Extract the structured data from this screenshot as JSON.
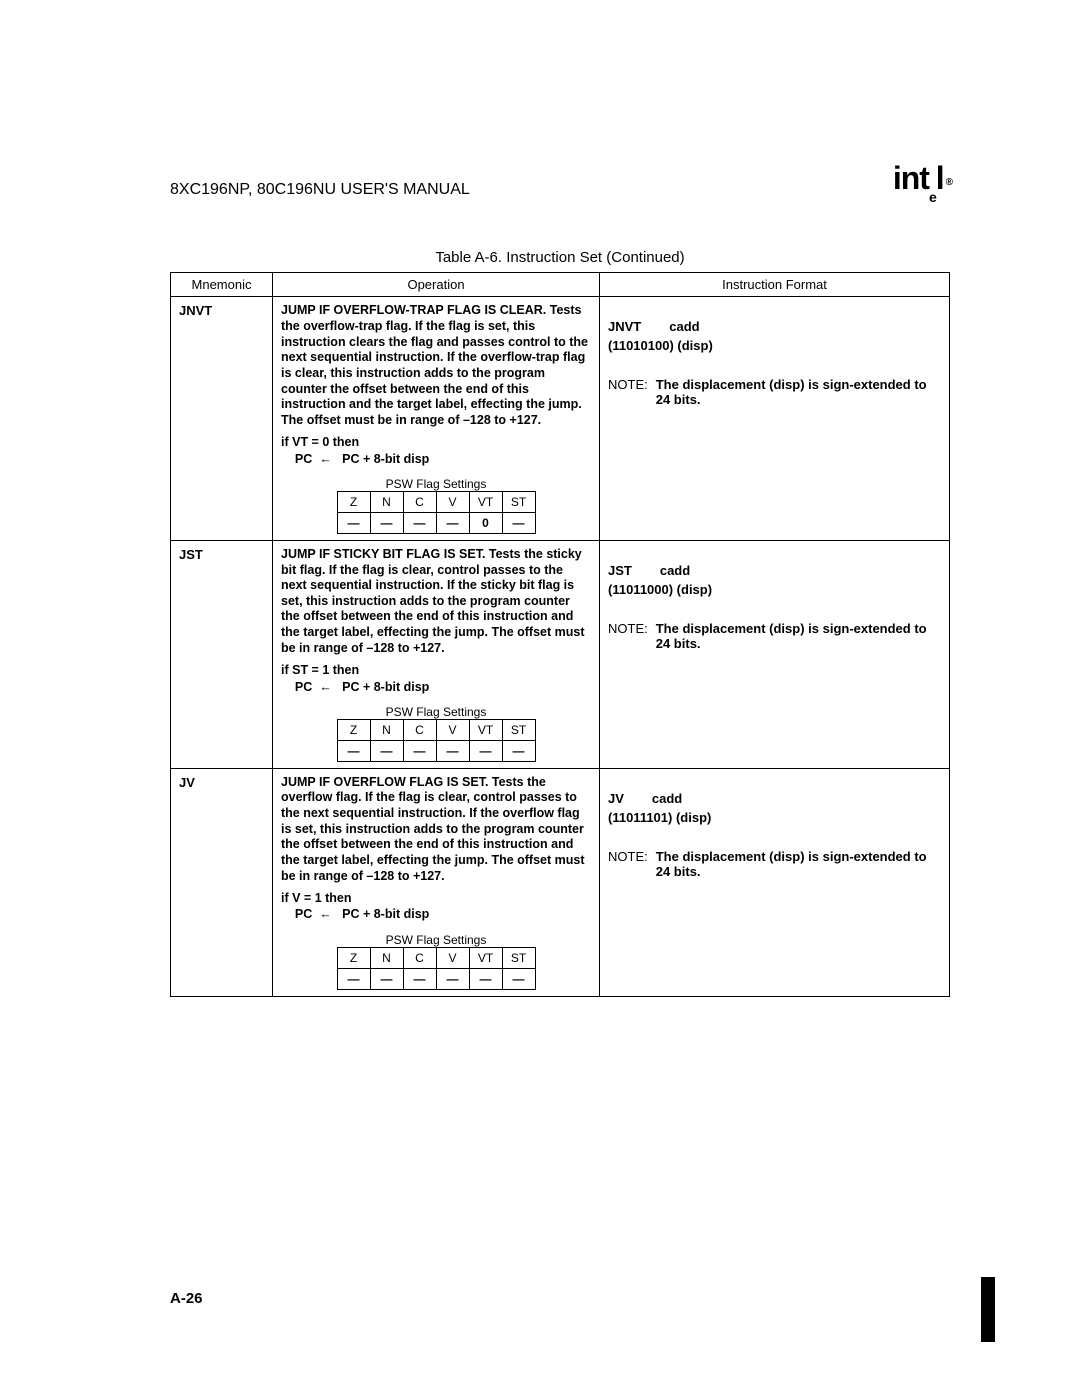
{
  "header": {
    "manual_title": "8XC196NP, 80C196NU USER'S MANUAL",
    "logo_text": "intel"
  },
  "table": {
    "caption": "Table A-6.  Instruction Set (Continued)",
    "columns": {
      "c0": "Mnemonic",
      "c1": "Operation",
      "c2": "Instruction Format"
    },
    "psw_title": "PSW Flag Settings",
    "psw_labels": {
      "z": "Z",
      "n": "N",
      "c": "C",
      "v": "V",
      "vt": "VT",
      "st": "ST"
    },
    "rows": [
      {
        "mnemonic": "JNVT",
        "op_desc": "JUMP IF OVERFLOW-TRAP FLAG IS CLEAR. Tests the overflow-trap flag. If the flag is set, this instruction clears the flag and passes control to the next sequential instruction. If the overflow-trap flag is clear, this instruction adds to the program counter the offset between the end of this instruction and the target label, effecting the jump. The offset must be in range of –128 to +127.",
        "op_cond1": "if VT = 0 then",
        "op_cond2": "    PC  ←   PC + 8-bit disp",
        "psw_vals": {
          "z": "—",
          "n": "—",
          "c": "—",
          "v": "—",
          "vt": "0",
          "st": "—"
        },
        "fmt_name": "JNVT",
        "fmt_arg": "cadd",
        "fmt_opcode": "(11010100) (disp)",
        "note_label": "NOTE:",
        "note_text": "The displacement (disp) is sign-extended to 24 bits."
      },
      {
        "mnemonic": "JST",
        "op_desc": "JUMP IF STICKY BIT FLAG IS SET. Tests the sticky bit flag. If the flag is clear, control passes to the next sequential instruction. If the sticky bit flag is set, this instruction adds to the program counter the offset between the end of this instruction and the target label, effecting the jump. The offset must be in range of –128 to +127.",
        "op_cond1": "if ST = 1 then",
        "op_cond2": "    PC  ←   PC + 8-bit disp",
        "psw_vals": {
          "z": "—",
          "n": "—",
          "c": "—",
          "v": "—",
          "vt": "—",
          "st": "—"
        },
        "fmt_name": "JST",
        "fmt_arg": "cadd",
        "fmt_opcode": "(11011000) (disp)",
        "note_label": "NOTE:",
        "note_text": "The displacement (disp) is sign-extended to 24 bits."
      },
      {
        "mnemonic": "JV",
        "op_desc": "JUMP IF OVERFLOW FLAG IS SET. Tests the overflow flag. If the flag is clear, control passes to the next sequential instruction. If the overflow flag is set, this instruction adds to the program counter the offset between the end of this instruction and the target label, effecting the jump. The offset must be in range of –128 to +127.",
        "op_cond1": "if V = 1 then",
        "op_cond2": "    PC  ←   PC + 8-bit disp",
        "psw_vals": {
          "z": "—",
          "n": "—",
          "c": "—",
          "v": "—",
          "vt": "—",
          "st": "—"
        },
        "fmt_name": "JV",
        "fmt_arg": "cadd",
        "fmt_opcode": "(11011101) (disp)",
        "note_label": "NOTE:",
        "note_text": "The displacement (disp) is sign-extended to 24 bits."
      }
    ]
  },
  "footer": {
    "page_number": "A-26"
  }
}
